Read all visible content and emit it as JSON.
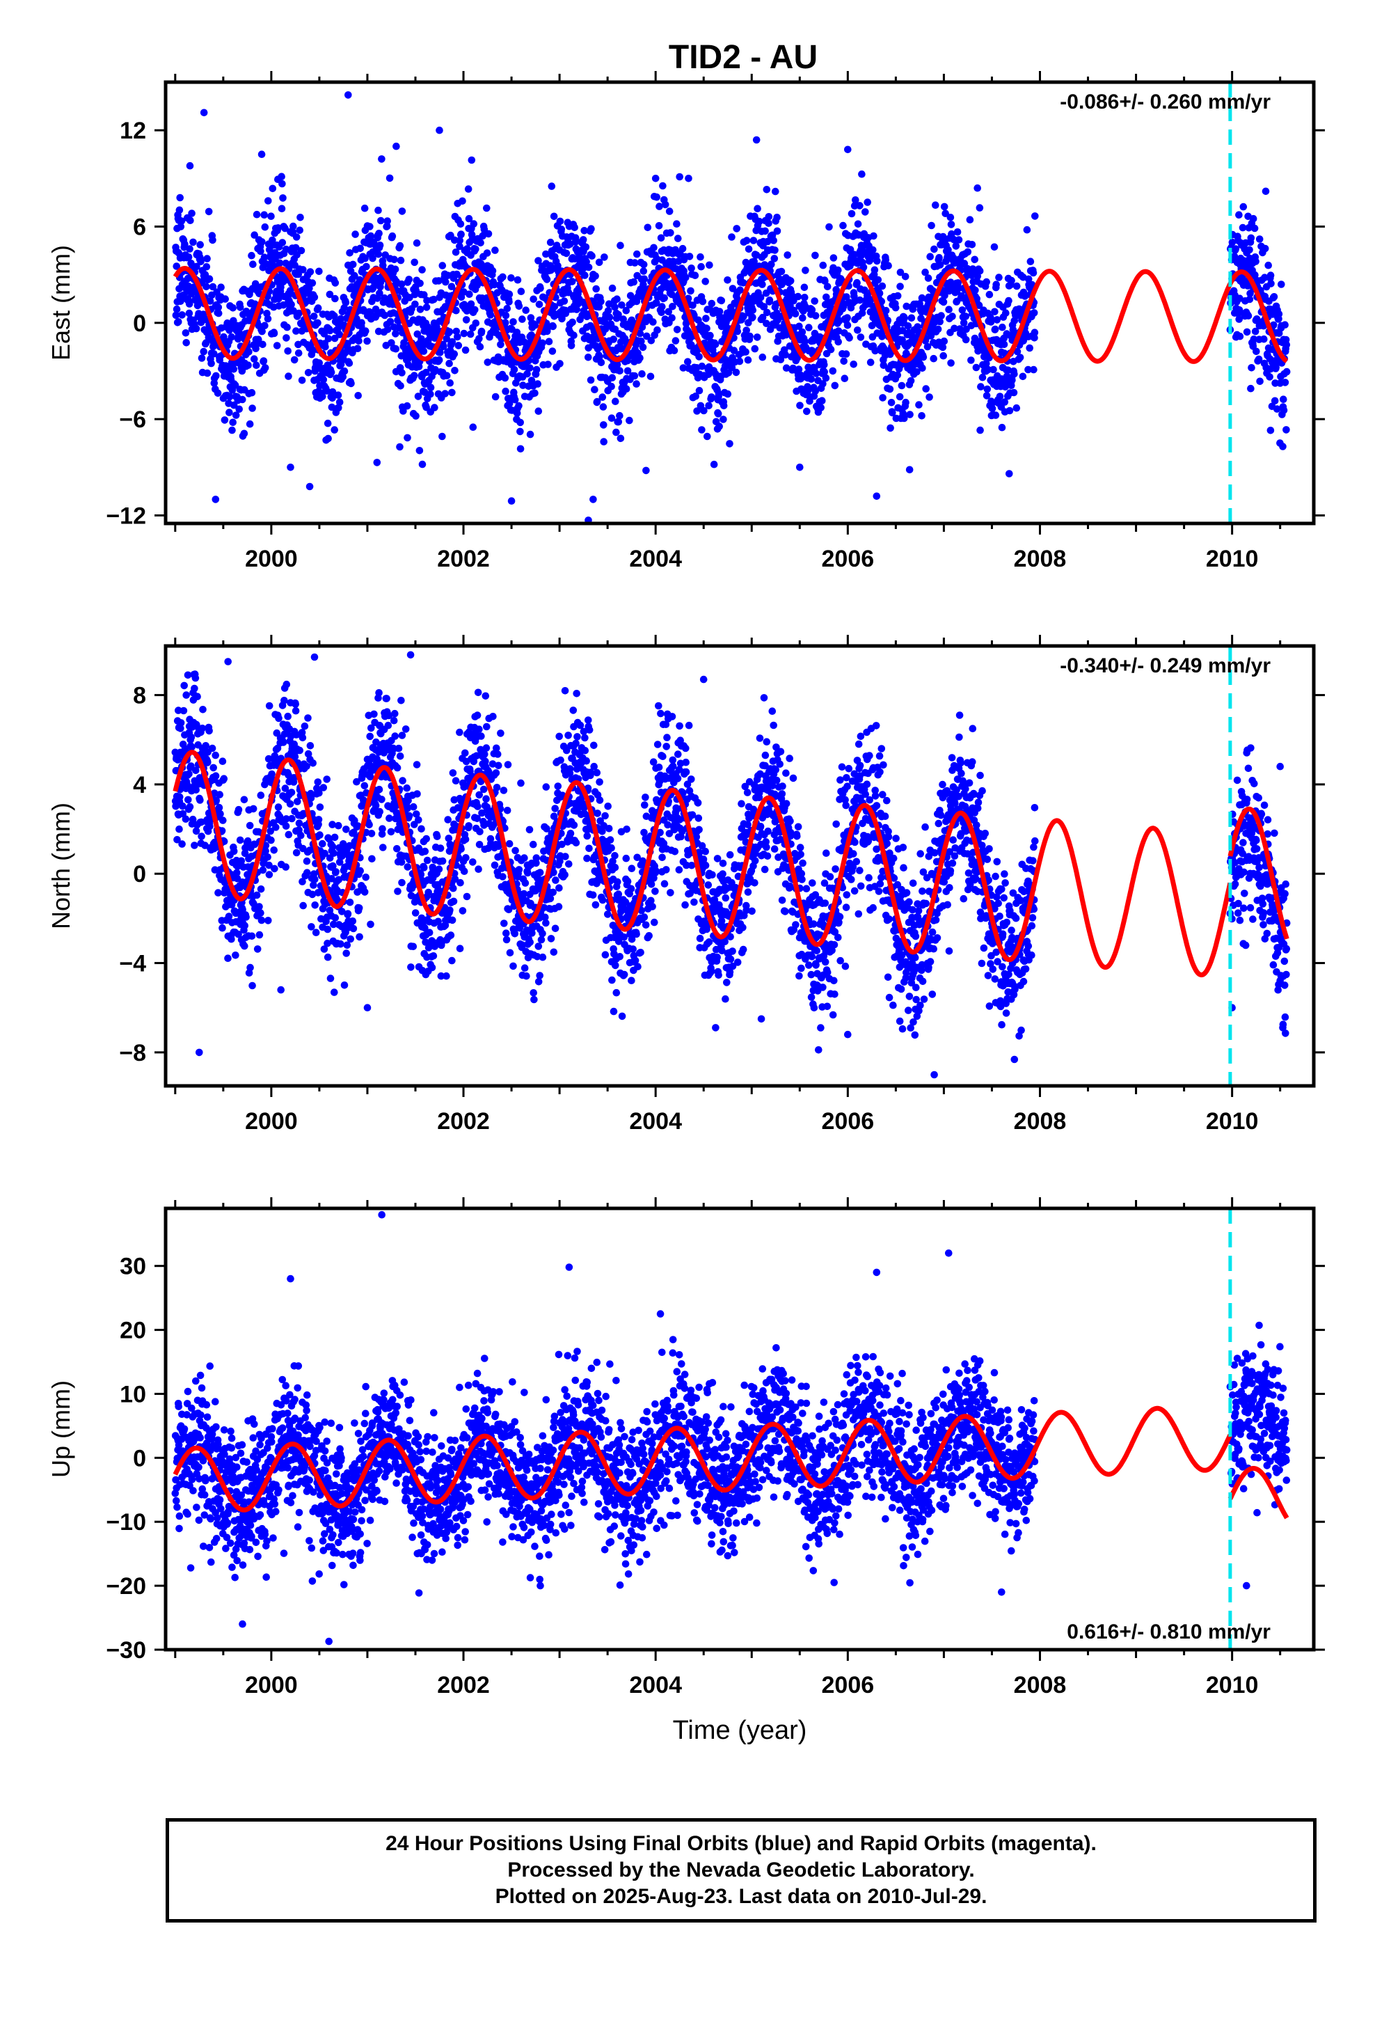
{
  "title": "TID2 - AU",
  "colors": {
    "final_orbits": "#0000ff",
    "model": "#ff0000",
    "event_line": "#00e5ee",
    "axis": "#000000"
  },
  "footer": {
    "line1": "24 Hour Positions Using Final Orbits (blue) and Rapid Orbits (magenta).",
    "line2": "Processed by the Nevada Geodetic Laboratory.",
    "line3": "Plotted on 2025-Aug-23. Last data on 2010-Jul-29."
  },
  "chart_data": [
    {
      "type": "scatter",
      "panel": "east",
      "ylabel": "East (mm)",
      "xlabel": "",
      "xlim": [
        1998.9,
        2010.85
      ],
      "ylim": [
        -12.5,
        15
      ],
      "yticks": [
        -12,
        -6,
        0,
        6,
        12
      ],
      "xticks": [
        2000,
        2002,
        2004,
        2006,
        2008,
        2010
      ],
      "rate_text": "-0.086+/- 0.260 mm/yr",
      "rate_position": "top-right",
      "event_line_x": 2009.98,
      "data_range": [
        1999.0,
        2007.95
      ],
      "data_range_2": [
        2009.98,
        2010.57
      ],
      "series": [
        {
          "name": "",
          "kind": "scatter",
          "points": [
            [
              1999.05,
              7.8
            ],
            [
              1999.15,
              3.2
            ],
            [
              1999.3,
              13.1
            ],
            [
              1999.42,
              -11.0
            ],
            [
              1999.6,
              -6.2
            ],
            [
              1999.9,
              10.5
            ],
            [
              2000.2,
              -9.0
            ],
            [
              2000.4,
              -10.2
            ],
            [
              2000.8,
              14.2
            ],
            [
              2001.1,
              -8.7
            ],
            [
              2001.3,
              11.0
            ],
            [
              2001.75,
              12.0
            ],
            [
              2002.1,
              -6.5
            ],
            [
              2002.5,
              -11.1
            ],
            [
              2003.3,
              -12.3
            ],
            [
              2003.35,
              -11.0
            ],
            [
              2003.9,
              -9.2
            ],
            [
              2004.0,
              9.0
            ],
            [
              2004.25,
              9.1
            ],
            [
              2005.05,
              11.4
            ],
            [
              2005.5,
              -9.0
            ],
            [
              2006.0,
              10.8
            ],
            [
              2006.3,
              -10.8
            ],
            [
              2007.35,
              8.4
            ],
            [
              2007.68,
              -9.4
            ],
            [
              2010.35,
              8.2
            ],
            [
              2010.4,
              -6.7
            ]
          ]
        },
        {
          "name": "",
          "kind": "model",
          "params": {
            "offset": 0.5,
            "amp": 2.8,
            "phase": 0.95,
            "drift": -0.02
          }
        }
      ]
    },
    {
      "type": "scatter",
      "panel": "north",
      "ylabel": "North (mm)",
      "xlabel": "",
      "xlim": [
        1998.9,
        2010.85
      ],
      "ylim": [
        -9.5,
        10.2
      ],
      "yticks": [
        -8,
        -4,
        0,
        4,
        8
      ],
      "xticks": [
        2000,
        2002,
        2004,
        2006,
        2008,
        2010
      ],
      "rate_text": "-0.340+/- 0.249 mm/yr",
      "rate_position": "top-right",
      "event_line_x": 2009.98,
      "data_range": [
        1999.0,
        2007.95
      ],
      "data_range_2": [
        2009.98,
        2010.57
      ],
      "series": [
        {
          "name": "",
          "kind": "scatter",
          "points": [
            [
              1999.2,
              8.3
            ],
            [
              1999.25,
              -8.0
            ],
            [
              1999.55,
              9.5
            ],
            [
              2000.45,
              9.7
            ],
            [
              2001.45,
              9.8
            ],
            [
              2000.1,
              -5.2
            ],
            [
              2001.0,
              -6.0
            ],
            [
              2004.5,
              8.7
            ],
            [
              2005.1,
              -6.5
            ],
            [
              2006.0,
              -7.2
            ],
            [
              2006.9,
              -9.0
            ],
            [
              2007.3,
              6.5
            ],
            [
              2010.0,
              -6.0
            ],
            [
              2010.5,
              4.8
            ]
          ]
        },
        {
          "name": "",
          "kind": "model",
          "params": {
            "offset": 0.6,
            "amp": 3.2,
            "phase": 0.45,
            "drift": -0.34
          }
        }
      ]
    },
    {
      "type": "scatter",
      "panel": "up",
      "ylabel": "Up (mm)",
      "xlabel": "Time (year)",
      "xlim": [
        1998.9,
        2010.85
      ],
      "ylim": [
        -30,
        39
      ],
      "yticks": [
        -30,
        -20,
        -10,
        0,
        10,
        20,
        30
      ],
      "xticks": [
        2000,
        2002,
        2004,
        2006,
        2008,
        2010
      ],
      "rate_text": "0.616+/- 0.810 mm/yr",
      "rate_position": "bottom-right",
      "event_line_x": 2009.98,
      "data_range": [
        1999.0,
        2007.95
      ],
      "data_range_2": [
        2009.98,
        2010.57
      ],
      "series": [
        {
          "name": "",
          "kind": "scatter",
          "points": [
            [
              1999.7,
              -26.0
            ],
            [
              2000.2,
              28.0
            ],
            [
              2000.6,
              -28.7
            ],
            [
              2001.15,
              38.0
            ],
            [
              2003.1,
              29.8
            ],
            [
              2002.8,
              -20.0
            ],
            [
              2004.05,
              22.5
            ],
            [
              2006.3,
              29.0
            ],
            [
              2007.05,
              32.0
            ],
            [
              2007.6,
              -21.0
            ],
            [
              2010.15,
              -20.0
            ]
          ]
        },
        {
          "name": "",
          "kind": "model",
          "params": {
            "offset": -0.5,
            "amp": 5.0,
            "phase": 0.2,
            "drift": 0.62
          }
        }
      ]
    }
  ]
}
